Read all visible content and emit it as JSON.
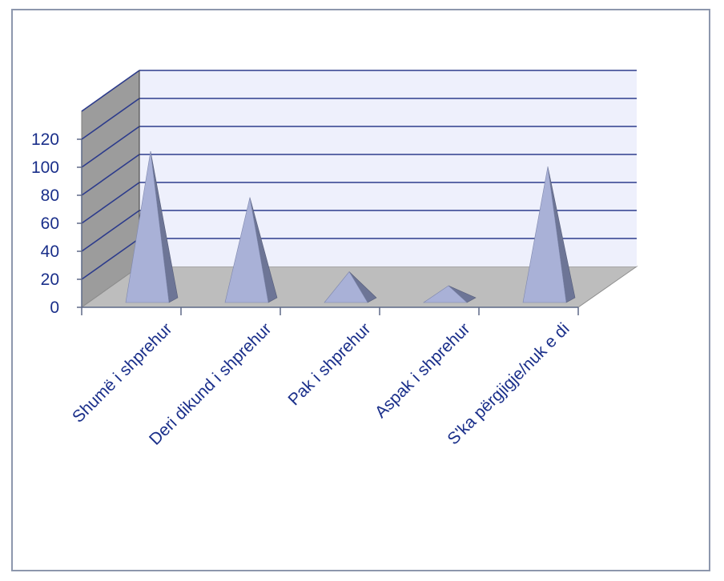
{
  "chart_data": {
    "type": "bar",
    "bar_shape": "pyramid-3d",
    "categories": [
      "Shumë i shprehur",
      "Deri dikund i shprehur",
      "Pak i shprehur",
      "Aspak i shprehur",
      "S'ka përgjigje/nuk e di"
    ],
    "values": [
      108,
      75,
      22,
      12,
      97
    ],
    "ylim": [
      0,
      120
    ],
    "yticks": [
      0,
      20,
      40,
      60,
      80,
      100,
      120
    ],
    "grid": true,
    "legend": "none",
    "colors": {
      "bar_front": "#a9b1d7",
      "bar_side": "#6d7596",
      "back_wall": "#eef0fc",
      "side_wall": "#9c9c9c",
      "floor": "#bdbdbd",
      "grid": "#2d3c8c",
      "label": "#1a2f8a",
      "frame": "#8d97ad"
    }
  }
}
